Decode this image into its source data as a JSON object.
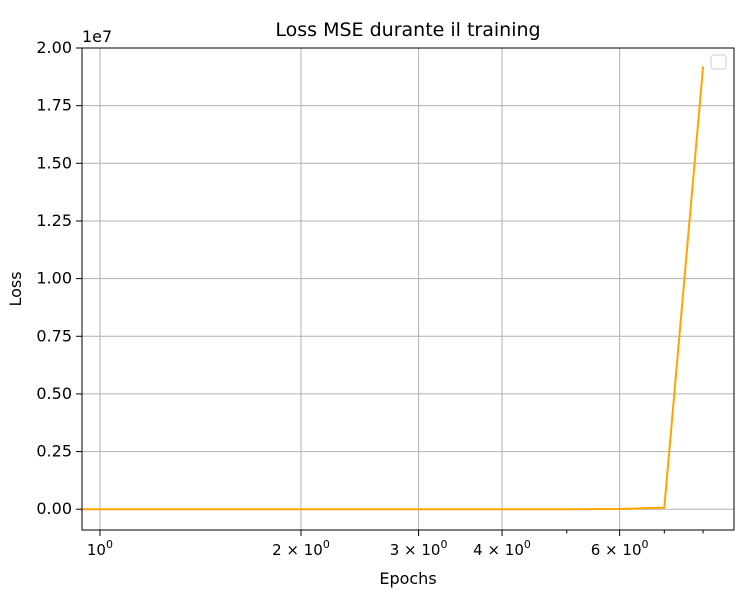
{
  "chart_data": {
    "type": "line",
    "title": "Loss MSE durante il training",
    "xlabel": "Epochs",
    "ylabel": "Loss",
    "x_scale": "log",
    "xlim": [
      0.94,
      8.9
    ],
    "ylim": [
      -0.09,
      2.0
    ],
    "y_offset_label": "1e7",
    "x_ticks": [
      {
        "value": 1,
        "base": "10",
        "exp": "0"
      },
      {
        "value": 2,
        "base": "2 × 10",
        "exp": "0"
      },
      {
        "value": 3,
        "base": "3 × 10",
        "exp": "0"
      },
      {
        "value": 4,
        "base": "4 × 10",
        "exp": "0"
      },
      {
        "value": 6,
        "base": "6 × 10",
        "exp": "0"
      }
    ],
    "x_minor_ticks": [
      5,
      7,
      8
    ],
    "y_ticks": [
      {
        "value": 0.0,
        "label": "0.00"
      },
      {
        "value": 0.25,
        "label": "0.25"
      },
      {
        "value": 0.5,
        "label": "0.50"
      },
      {
        "value": 0.75,
        "label": "0.75"
      },
      {
        "value": 1.0,
        "label": "1.00"
      },
      {
        "value": 1.25,
        "label": "1.25"
      },
      {
        "value": 1.5,
        "label": "1.50"
      },
      {
        "value": 1.75,
        "label": "1.75"
      },
      {
        "value": 2.0,
        "label": "2.00"
      }
    ],
    "grid": true,
    "legend": "top-right (empty)",
    "series": [
      {
        "color": "#ffa500",
        "x": [
          0.94,
          1,
          2,
          3,
          4,
          5,
          6,
          7,
          8
        ],
        "y": [
          0.0,
          0.0,
          0.0,
          0.0,
          0.0,
          0.0,
          0.001,
          0.007,
          1.92
        ]
      }
    ]
  }
}
